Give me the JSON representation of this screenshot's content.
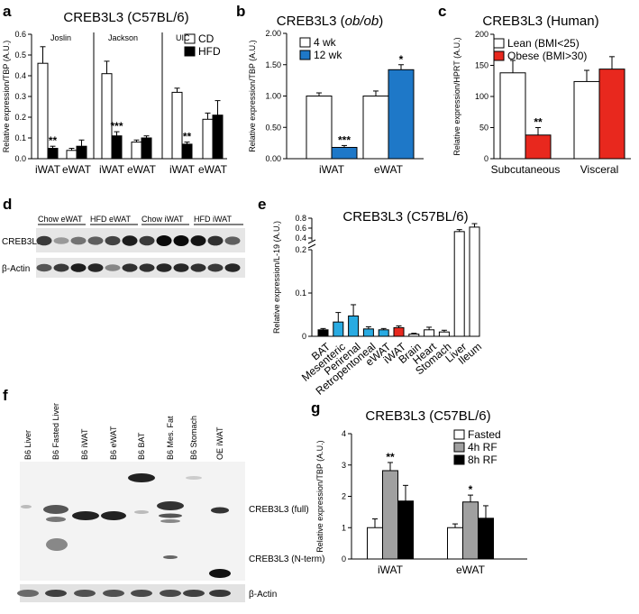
{
  "panels": {
    "a": {
      "letter": "a"
    },
    "b": {
      "letter": "b"
    },
    "c": {
      "letter": "c"
    },
    "d": {
      "letter": "d"
    },
    "e": {
      "letter": "e"
    },
    "f": {
      "letter": "f"
    },
    "g": {
      "letter": "g"
    }
  },
  "colors": {
    "white": "#ffffff",
    "black": "#000000",
    "blue": "#1e78c8",
    "red": "#e8281e",
    "cyan": "#29abe2",
    "gray": "#a0a0a0"
  },
  "chart_data": [
    {
      "id": "a",
      "type": "bar",
      "title": "CREB3L3 (C57BL/6)",
      "ylabel": "Relative expression/TBP (A.U.)",
      "ylim": [
        0,
        0.6
      ],
      "yticks": [
        "0.0",
        "0.1",
        "0.2",
        "0.3",
        "0.4",
        "0.5",
        "0.6"
      ],
      "groups": [
        "Joslin",
        "Jackson",
        "UIC"
      ],
      "categories": [
        "iWAT",
        "eWAT",
        "iWAT",
        "eWAT",
        "iWAT",
        "eWAT"
      ],
      "series": [
        {
          "name": "CD",
          "values": [
            0.46,
            0.04,
            0.41,
            0.08,
            0.32,
            0.19
          ],
          "err": [
            0.08,
            0.01,
            0.06,
            0.01,
            0.02,
            0.03
          ]
        },
        {
          "name": "HFD",
          "values": [
            0.05,
            0.06,
            0.11,
            0.1,
            0.07,
            0.21
          ],
          "err": [
            0.01,
            0.03,
            0.02,
            0.01,
            0.01,
            0.07
          ]
        }
      ],
      "annotations": [
        {
          "category": 0,
          "series": 1,
          "text": "**"
        },
        {
          "category": 2,
          "series": 1,
          "text": "***"
        },
        {
          "category": 4,
          "series": 1,
          "text": "**"
        }
      ],
      "legend": "top-right"
    },
    {
      "id": "b",
      "type": "bar",
      "title": "CREB3L3 (ob/ob)",
      "title_parts": [
        "CREB3L3 (",
        "ob/ob",
        ")"
      ],
      "ylabel": "Relative expression/TBP (A.U.)",
      "ylim": [
        0,
        2.0
      ],
      "yticks": [
        "0.00",
        "0.50",
        "1.00",
        "1.50",
        "2.00"
      ],
      "categories": [
        "iWAT",
        "eWAT"
      ],
      "series": [
        {
          "name": "4 wk",
          "values": [
            1.0,
            1.0
          ],
          "err": [
            0.05,
            0.08
          ]
        },
        {
          "name": "12 wk",
          "values": [
            0.18,
            1.42
          ],
          "err": [
            0.03,
            0.08
          ]
        }
      ],
      "annotations": [
        {
          "category": 0,
          "series": 1,
          "text": "***"
        },
        {
          "category": 1,
          "series": 1,
          "text": "*"
        }
      ],
      "legend": "top-left"
    },
    {
      "id": "c",
      "type": "bar",
      "title": "CREB3L3 (Human)",
      "ylabel": "Relative expression/HPRT (A.U.)",
      "ylim": [
        0,
        200
      ],
      "yticks": [
        "0",
        "50",
        "100",
        "150",
        "200"
      ],
      "categories": [
        "Subcutaneous",
        "Visceral"
      ],
      "series": [
        {
          "name": "Lean (BMI<25)",
          "values": [
            138,
            124
          ],
          "err": [
            20,
            18
          ]
        },
        {
          "name": "Obese (BMI>30)",
          "values": [
            38,
            144
          ],
          "err": [
            12,
            20
          ]
        }
      ],
      "annotations": [
        {
          "category": 0,
          "series": 1,
          "text": "**"
        }
      ],
      "legend": "top-left"
    },
    {
      "id": "e",
      "type": "bar",
      "title": "CREB3L3 (C57BL/6)",
      "ylabel": "Relative expression/L-19 (A.U.)",
      "ylim": [
        0,
        0.8
      ],
      "axis_break": [
        0.2,
        0.4
      ],
      "yticks": [
        "0",
        "0.1",
        "0.2",
        "0.4",
        "0.6",
        "0.8"
      ],
      "categories": [
        "BAT",
        "Mesenteric",
        "Perirenal",
        "Retropentoneal",
        "eWAT",
        "iWAT",
        "Brain",
        "Heart",
        "Stomach",
        "Liver",
        "Ileum"
      ],
      "values": [
        0.015,
        0.033,
        0.047,
        0.017,
        0.015,
        0.02,
        0.005,
        0.015,
        0.01,
        0.53,
        0.62
      ],
      "err": [
        0.003,
        0.022,
        0.026,
        0.005,
        0.003,
        0.004,
        0.002,
        0.006,
        0.004,
        0.04,
        0.07
      ],
      "bar_colors": [
        "black",
        "cyan",
        "cyan",
        "cyan",
        "cyan",
        "red",
        "white",
        "white",
        "white",
        "white",
        "white"
      ]
    },
    {
      "id": "g",
      "type": "bar",
      "title": "CREB3L3 (C57BL/6)",
      "ylabel": "Relative expression/TBP (A.U.)",
      "ylim": [
        0,
        4
      ],
      "yticks": [
        "0",
        "1",
        "2",
        "3",
        "4"
      ],
      "categories": [
        "iWAT",
        "eWAT"
      ],
      "series": [
        {
          "name": "Fasted",
          "values": [
            1.0,
            1.0
          ],
          "err": [
            0.28,
            0.12
          ]
        },
        {
          "name": "4h RF",
          "values": [
            2.82,
            1.82
          ],
          "err": [
            0.26,
            0.22
          ]
        },
        {
          "name": "8h RF",
          "values": [
            1.85,
            1.3
          ],
          "err": [
            0.5,
            0.4
          ]
        }
      ],
      "annotations": [
        {
          "category": 0,
          "series": 1,
          "text": "**"
        },
        {
          "category": 1,
          "series": 1,
          "text": "*"
        }
      ],
      "legend": "top-right"
    }
  ],
  "blot_d": {
    "header": [
      "Chow eWAT",
      "HFD eWAT",
      "Chow iWAT",
      "HFD iWAT"
    ],
    "bands": [
      "CREB3L3",
      "β-Actin"
    ],
    "creb_intensity": [
      0.75,
      0.25,
      0.45,
      0.55,
      0.7,
      0.9,
      0.75,
      1.0,
      1.0,
      0.95,
      0.8,
      0.55
    ],
    "actin_intensity": [
      0.6,
      0.75,
      0.9,
      0.85,
      0.35,
      0.8,
      0.8,
      0.85,
      0.85,
      0.8,
      0.75,
      0.85
    ]
  },
  "blot_f": {
    "lanes": [
      "B6 Liver",
      "B6 Fasted Liver",
      "B6 iWAT",
      "B6 eWAT",
      "B6 BAT",
      "B6 Mes. Fat",
      "B6 Stomach",
      "OE iWAT"
    ],
    "labels": [
      "CREB3L3 (full)",
      "CREB3L3 (N-term)",
      "β-Actin"
    ]
  }
}
